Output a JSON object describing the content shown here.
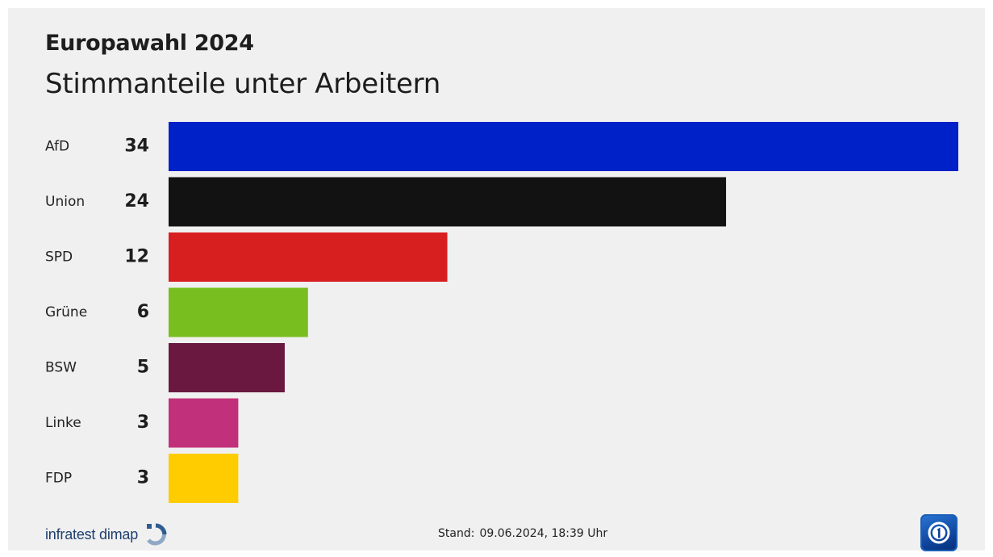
{
  "header": {
    "title": "Europawahl 2024",
    "subtitle": "Stimmanteile unter Arbeitern"
  },
  "footer": {
    "source": "infratest dimap",
    "stand_label": "Stand:",
    "stand_value": "09.06.2024, 18:39 Uhr",
    "logo_icon": "das-erste-logo-icon"
  },
  "chart_data": {
    "type": "bar",
    "orientation": "horizontal",
    "title": "Europawahl 2024",
    "subtitle": "Stimmanteile unter Arbeitern",
    "categories": [
      "AfD",
      "Union",
      "SPD",
      "Grüne",
      "BSW",
      "Linke",
      "FDP"
    ],
    "values": [
      34,
      24,
      12,
      6,
      5,
      3,
      3
    ],
    "colors": [
      "#0021c8",
      "#121212",
      "#d71f1f",
      "#78be1e",
      "#6a1840",
      "#c1307a",
      "#ffcc00"
    ],
    "xlim": [
      0,
      34
    ],
    "grid": false,
    "legend": "none",
    "data_labels": true
  }
}
